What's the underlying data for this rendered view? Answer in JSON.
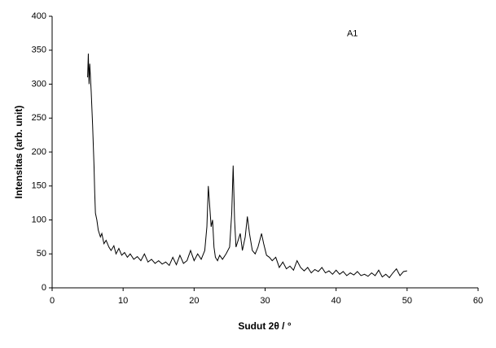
{
  "chart_data": {
    "type": "line",
    "xlabel": "Sudut 2θ / °",
    "ylabel": "Intensitas (arb. unit)",
    "annotation": {
      "text": "A1",
      "x": 42.3,
      "y": 374
    },
    "xlim": [
      0,
      60
    ],
    "xticks": [
      0,
      10,
      20,
      30,
      40,
      50,
      60
    ],
    "ylim": [
      0,
      400
    ],
    "yticks": [
      0,
      50,
      100,
      150,
      200,
      250,
      300,
      350,
      400
    ],
    "x": [
      5.0,
      5.1,
      5.2,
      5.3,
      5.5,
      5.7,
      5.9,
      6.0,
      6.1,
      6.3,
      6.5,
      6.8,
      7.0,
      7.3,
      7.6,
      8.0,
      8.3,
      8.7,
      9.0,
      9.4,
      9.8,
      10.2,
      10.6,
      11.0,
      11.5,
      12.0,
      12.5,
      13.0,
      13.5,
      14.0,
      14.5,
      15.0,
      15.5,
      16.0,
      16.5,
      17.0,
      17.5,
      18.0,
      18.5,
      19.0,
      19.5,
      20.0,
      20.5,
      21.0,
      21.5,
      21.8,
      22.0,
      22.2,
      22.4,
      22.6,
      22.8,
      23.0,
      23.3,
      23.6,
      24.0,
      24.5,
      25.0,
      25.3,
      25.5,
      25.7,
      25.9,
      26.2,
      26.5,
      26.8,
      27.2,
      27.5,
      27.8,
      28.2,
      28.6,
      29.0,
      29.5,
      29.8,
      30.2,
      30.6,
      31.0,
      31.5,
      32.0,
      32.5,
      33.0,
      33.5,
      34.0,
      34.5,
      35.0,
      35.5,
      36.0,
      36.5,
      37.0,
      37.5,
      38.0,
      38.5,
      39.0,
      39.5,
      40.0,
      40.5,
      41.0,
      41.5,
      42.0,
      42.5,
      43.0,
      43.5,
      44.0,
      44.5,
      45.0,
      45.5,
      46.0,
      46.5,
      47.0,
      47.5,
      48.0,
      48.5,
      49.0,
      49.5,
      50.0
    ],
    "series": [
      {
        "name": "A1",
        "color": "#000000",
        "values": [
          310,
          345,
          300,
          330,
          290,
          240,
          180,
          140,
          110,
          100,
          85,
          75,
          80,
          65,
          70,
          60,
          55,
          62,
          50,
          58,
          48,
          52,
          45,
          50,
          42,
          46,
          40,
          50,
          38,
          42,
          36,
          40,
          35,
          38,
          33,
          45,
          34,
          48,
          36,
          40,
          55,
          40,
          50,
          42,
          55,
          90,
          150,
          120,
          90,
          100,
          60,
          45,
          40,
          48,
          42,
          50,
          60,
          110,
          180,
          100,
          60,
          70,
          80,
          55,
          75,
          105,
          80,
          55,
          50,
          60,
          80,
          65,
          48,
          45,
          40,
          45,
          30,
          38,
          28,
          32,
          26,
          40,
          30,
          25,
          30,
          22,
          27,
          24,
          30,
          22,
          25,
          20,
          26,
          20,
          24,
          18,
          22,
          19,
          24,
          18,
          20,
          17,
          22,
          18,
          26,
          16,
          20,
          15,
          22,
          28,
          18,
          24,
          25
        ]
      }
    ]
  }
}
